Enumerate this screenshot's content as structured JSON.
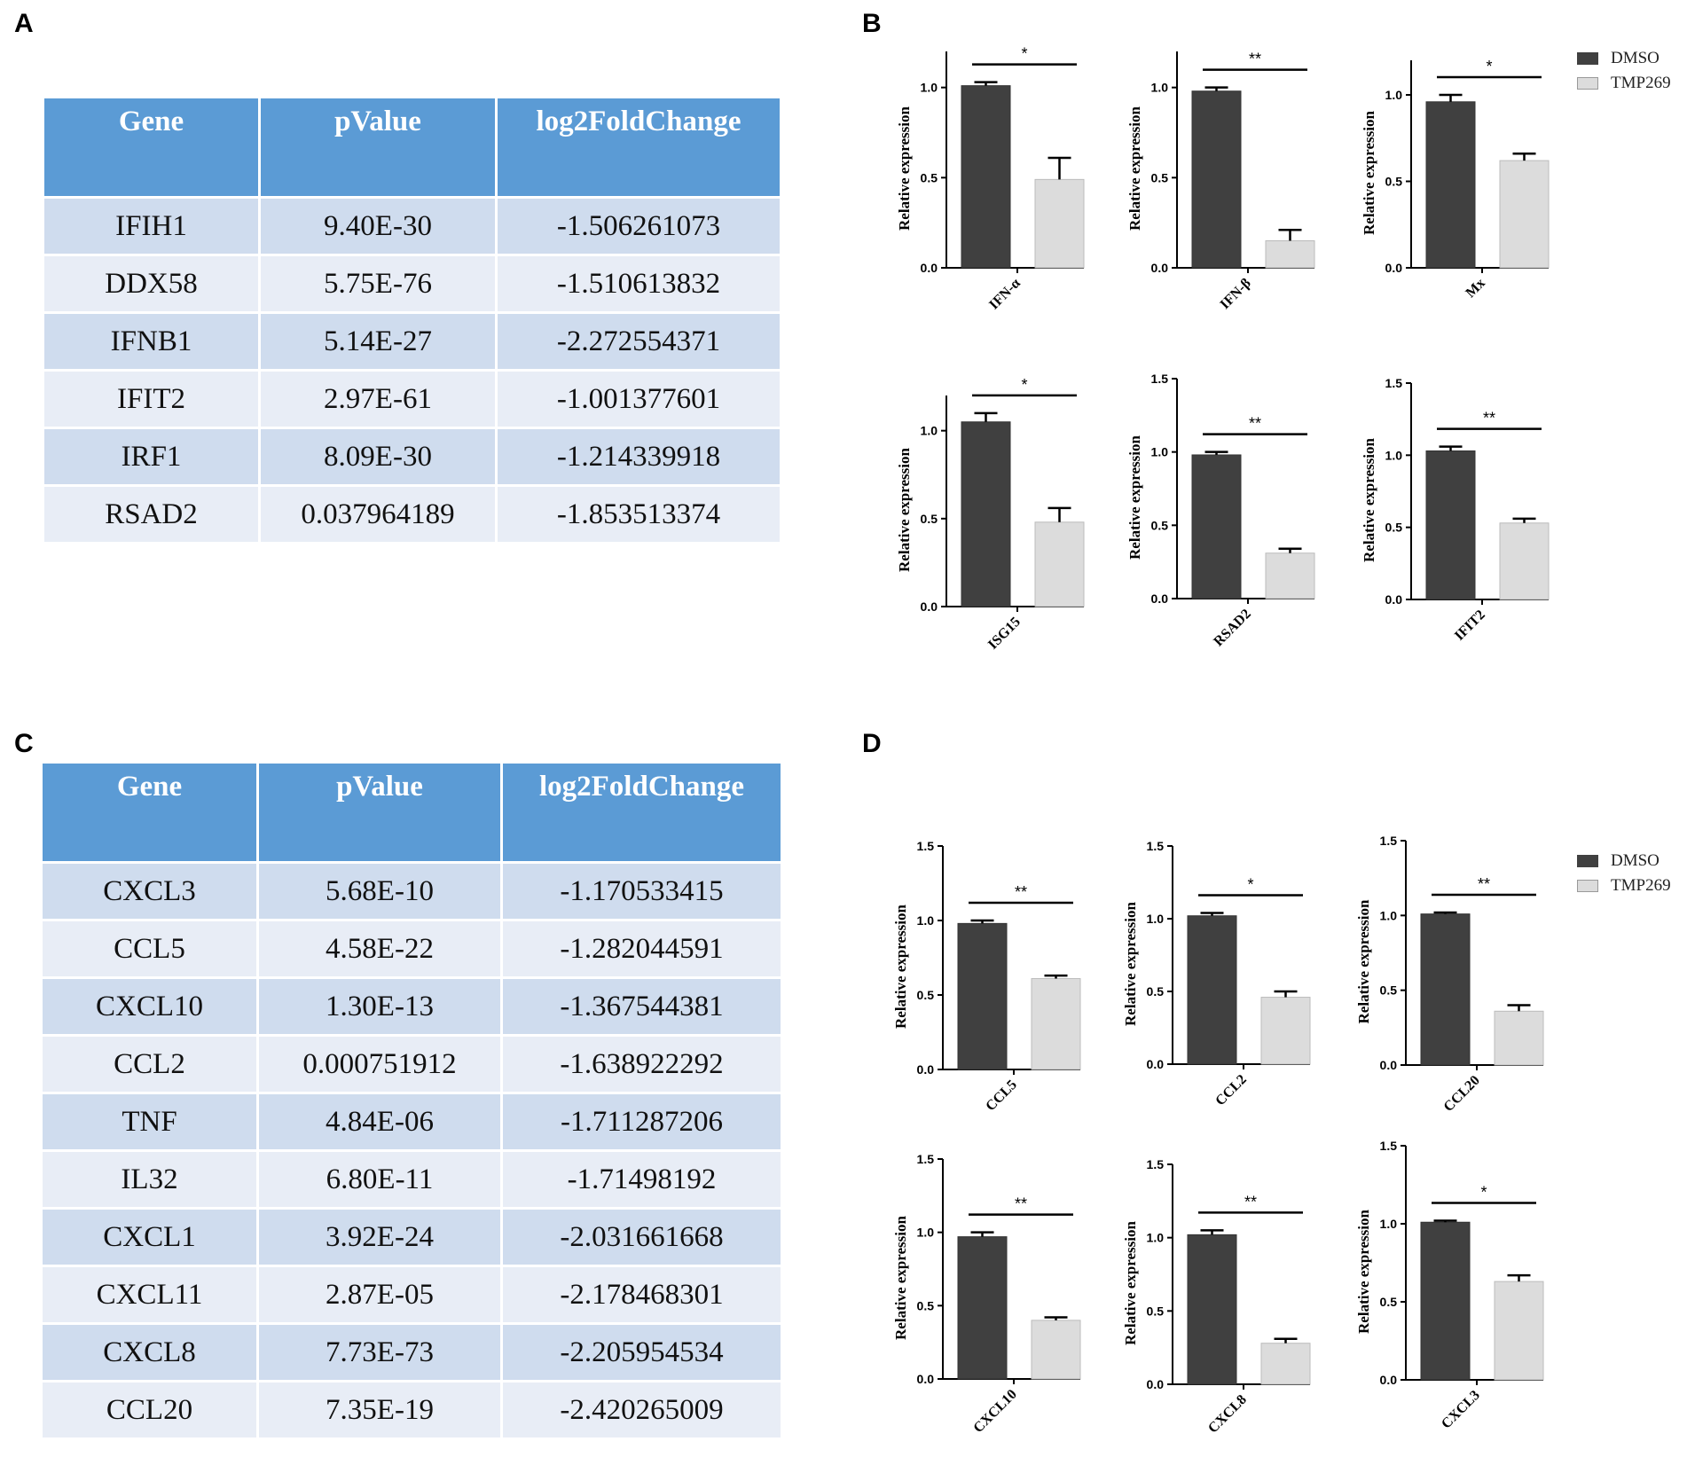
{
  "panels": {
    "A": "A",
    "B": "B",
    "C": "C",
    "D": "D"
  },
  "table_A": {
    "headers": [
      "Gene",
      "pValue",
      "log2FoldChange"
    ],
    "rows": [
      [
        "IFIH1",
        "9.40E-30",
        "-1.506261073"
      ],
      [
        "DDX58",
        "5.75E-76",
        "-1.510613832"
      ],
      [
        "IFNB1",
        "5.14E-27",
        "-2.272554371"
      ],
      [
        "IFIT2",
        "2.97E-61",
        "-1.001377601"
      ],
      [
        "IRF1",
        "8.09E-30",
        "-1.214339918"
      ],
      [
        "RSAD2",
        "0.037964189",
        "-1.853513374"
      ]
    ]
  },
  "table_C": {
    "headers": [
      "Gene",
      "pValue",
      "log2FoldChange"
    ],
    "rows": [
      [
        "CXCL3",
        "5.68E-10",
        "-1.170533415"
      ],
      [
        "CCL5",
        "4.58E-22",
        "-1.282044591"
      ],
      [
        "CXCL10",
        "1.30E-13",
        "-1.367544381"
      ],
      [
        "CCL2",
        "0.000751912",
        "-1.638922292"
      ],
      [
        "TNF",
        "4.84E-06",
        "-1.711287206"
      ],
      [
        "IL32",
        "6.80E-11",
        "-1.71498192"
      ],
      [
        "CXCL1",
        "3.92E-24",
        "-2.031661668"
      ],
      [
        "CXCL11",
        "2.87E-05",
        "-2.178468301"
      ],
      [
        "CXCL8",
        "7.73E-73",
        "-2.205954534"
      ],
      [
        "CCL20",
        "7.35E-19",
        "-2.420265009"
      ]
    ]
  },
  "legend": {
    "items": [
      {
        "label": "DMSO",
        "color": "#404040"
      },
      {
        "label": "TMP269",
        "color": "#dcdcdc"
      }
    ]
  },
  "chart_data": [
    {
      "type": "bar",
      "gene": "IFN-α",
      "ylabel": "Relative expression",
      "ylim": [
        0,
        1.2
      ],
      "ticks": [
        "0.0",
        "0.5",
        "1.0"
      ],
      "series": [
        {
          "name": "DMSO",
          "value": 1.01,
          "error": 0.02
        },
        {
          "name": "TMP269",
          "value": 0.49,
          "error": 0.12
        }
      ],
      "significance": "*"
    },
    {
      "type": "bar",
      "gene": "IFN-β",
      "ylabel": "Relative expression",
      "ylim": [
        0,
        1.2
      ],
      "ticks": [
        "0.0",
        "0.5",
        "1.0"
      ],
      "series": [
        {
          "name": "DMSO",
          "value": 0.98,
          "error": 0.02
        },
        {
          "name": "TMP269",
          "value": 0.15,
          "error": 0.06
        }
      ],
      "significance": "**"
    },
    {
      "type": "bar",
      "gene": "Mx",
      "ylabel": "Relative expression",
      "ylim": [
        0,
        1.2
      ],
      "ticks": [
        "0.0",
        "0.5",
        "1.0"
      ],
      "series": [
        {
          "name": "DMSO",
          "value": 0.96,
          "error": 0.04
        },
        {
          "name": "TMP269",
          "value": 0.62,
          "error": 0.04
        }
      ],
      "significance": "*"
    },
    {
      "type": "bar",
      "gene": "ISG15",
      "ylabel": "Relative expression",
      "ylim": [
        0,
        1.2
      ],
      "ticks": [
        "0.0",
        "0.5",
        "1.0"
      ],
      "series": [
        {
          "name": "DMSO",
          "value": 1.05,
          "error": 0.05
        },
        {
          "name": "TMP269",
          "value": 0.48,
          "error": 0.08
        }
      ],
      "significance": "*"
    },
    {
      "type": "bar",
      "gene": "RSAD2",
      "ylabel": "Relative expression",
      "ylim": [
        0,
        1.5
      ],
      "ticks": [
        "0.0",
        "0.5",
        "1.0",
        "1.5"
      ],
      "series": [
        {
          "name": "DMSO",
          "value": 0.98,
          "error": 0.02
        },
        {
          "name": "TMP269",
          "value": 0.31,
          "error": 0.03
        }
      ],
      "significance": "**"
    },
    {
      "type": "bar",
      "gene": "IFIT2",
      "ylabel": "Relative expression",
      "ylim": [
        0,
        1.5
      ],
      "ticks": [
        "0.0",
        "0.5",
        "1.0",
        "1.5"
      ],
      "series": [
        {
          "name": "DMSO",
          "value": 1.03,
          "error": 0.03
        },
        {
          "name": "TMP269",
          "value": 0.53,
          "error": 0.03
        }
      ],
      "significance": "**"
    },
    {
      "type": "bar",
      "gene": "CCL5",
      "ylabel": "Relative expression",
      "ylim": [
        0,
        1.5
      ],
      "ticks": [
        "0.0",
        "0.5",
        "1.0",
        "1.5"
      ],
      "series": [
        {
          "name": "DMSO",
          "value": 0.98,
          "error": 0.02
        },
        {
          "name": "TMP269",
          "value": 0.61,
          "error": 0.02
        }
      ],
      "significance": "**"
    },
    {
      "type": "bar",
      "gene": "CCL2",
      "ylabel": "Relative expression",
      "ylim": [
        0,
        1.5
      ],
      "ticks": [
        "0.0",
        "0.5",
        "1.0",
        "1.5"
      ],
      "series": [
        {
          "name": "DMSO",
          "value": 1.02,
          "error": 0.02
        },
        {
          "name": "TMP269",
          "value": 0.46,
          "error": 0.04
        }
      ],
      "significance": "*"
    },
    {
      "type": "bar",
      "gene": "CCL20",
      "ylabel": "Relative expression",
      "ylim": [
        0,
        1.5
      ],
      "ticks": [
        "0.0",
        "0.5",
        "1.0",
        "1.5"
      ],
      "series": [
        {
          "name": "DMSO",
          "value": 1.01,
          "error": 0.01
        },
        {
          "name": "TMP269",
          "value": 0.36,
          "error": 0.04
        }
      ],
      "significance": "**"
    },
    {
      "type": "bar",
      "gene": "CXCL10",
      "ylabel": "Relative expression",
      "ylim": [
        0,
        1.5
      ],
      "ticks": [
        "0.0",
        "0.5",
        "1.0",
        "1.5"
      ],
      "series": [
        {
          "name": "DMSO",
          "value": 0.97,
          "error": 0.03
        },
        {
          "name": "TMP269",
          "value": 0.4,
          "error": 0.02
        }
      ],
      "significance": "**"
    },
    {
      "type": "bar",
      "gene": "CXCL8",
      "ylabel": "Relative expression",
      "ylim": [
        0,
        1.5
      ],
      "ticks": [
        "0.0",
        "0.5",
        "1.0",
        "1.5"
      ],
      "series": [
        {
          "name": "DMSO",
          "value": 1.02,
          "error": 0.03
        },
        {
          "name": "TMP269",
          "value": 0.28,
          "error": 0.03
        }
      ],
      "significance": "**"
    },
    {
      "type": "bar",
      "gene": "CXCL3",
      "ylabel": "Relative expression",
      "ylim": [
        0,
        1.5
      ],
      "ticks": [
        "0.0",
        "0.5",
        "1.0",
        "1.5"
      ],
      "series": [
        {
          "name": "DMSO",
          "value": 1.01,
          "error": 0.01
        },
        {
          "name": "TMP269",
          "value": 0.63,
          "error": 0.04
        }
      ],
      "significance": "*"
    }
  ]
}
